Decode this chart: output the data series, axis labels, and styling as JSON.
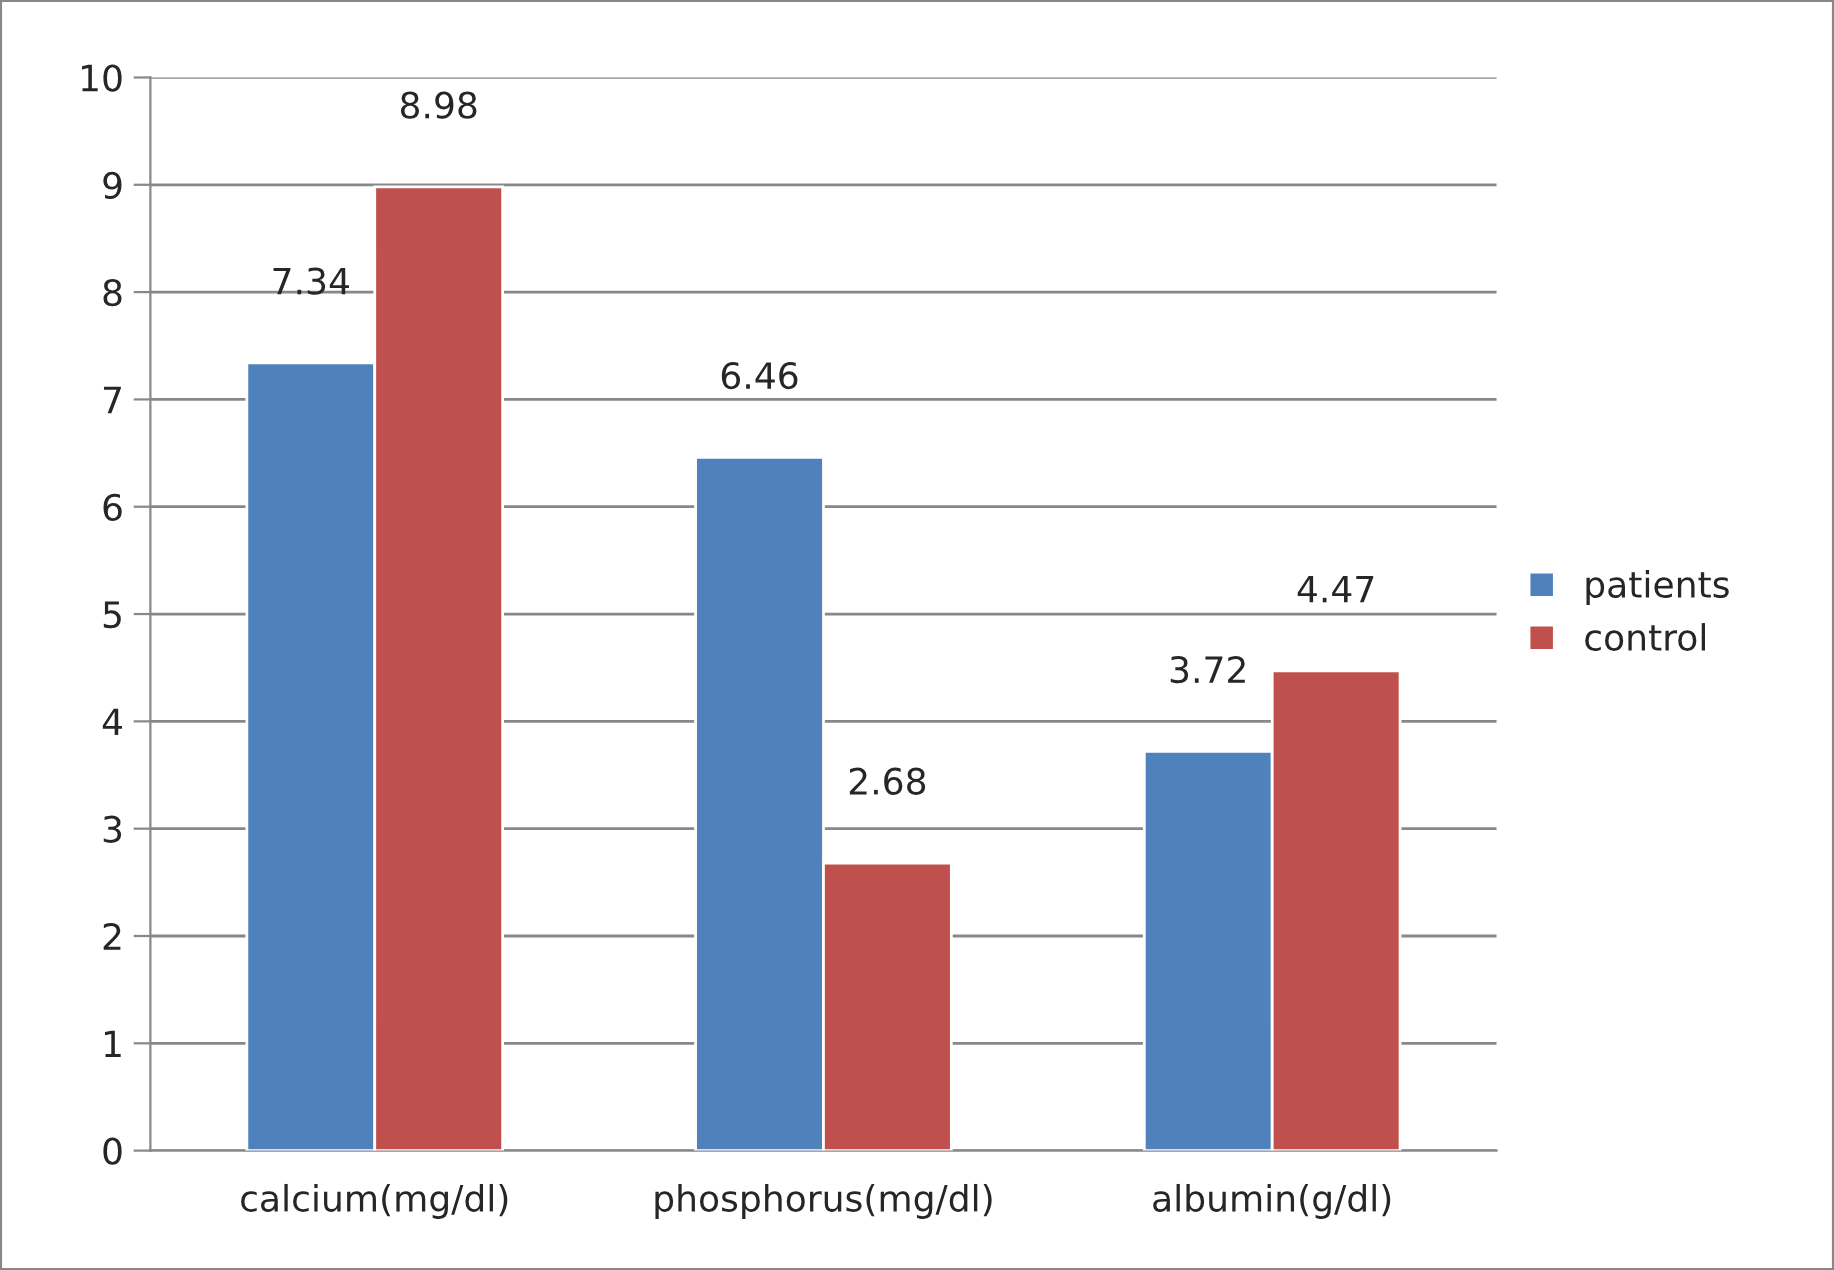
{
  "chart_data": {
    "type": "bar",
    "categories": [
      "calcium(mg/dl)",
      "phosphorus(mg/dl)",
      "albumin(g/dl)"
    ],
    "series": [
      {
        "name": "patients",
        "color": "#4f81bd",
        "values": [
          7.34,
          6.46,
          3.72
        ]
      },
      {
        "name": "control",
        "color": "#c0504d",
        "values": [
          8.98,
          2.68,
          4.47
        ]
      }
    ],
    "ylim": [
      0,
      10
    ],
    "yticks": [
      0,
      1,
      2,
      3,
      4,
      5,
      6,
      7,
      8,
      9,
      10
    ],
    "grid": "y",
    "legend": "right",
    "data_labels": true
  }
}
